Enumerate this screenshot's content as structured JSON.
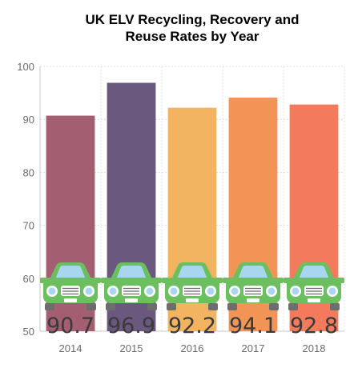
{
  "chart_data": {
    "type": "bar",
    "title_lines": [
      "UK ELV Recycling, Recovery and",
      "Reuse Rates by Year"
    ],
    "categories": [
      "2014",
      "2015",
      "2016",
      "2017",
      "2018"
    ],
    "values": [
      90.7,
      96.9,
      92.2,
      94.1,
      92.8
    ],
    "value_labels": [
      "90.7",
      "96.9",
      "92.2",
      "94.1",
      "92.8"
    ],
    "bar_colors": [
      "#a45e72",
      "#6b587f",
      "#f3b462",
      "#f39457",
      "#f47a5e"
    ],
    "ylim": [
      50,
      100
    ],
    "y_ticks": [
      "50",
      "60",
      "70",
      "80",
      "90",
      "100"
    ],
    "grid": true,
    "icon": "car-icon",
    "icon_color": "#6cbf5f"
  }
}
